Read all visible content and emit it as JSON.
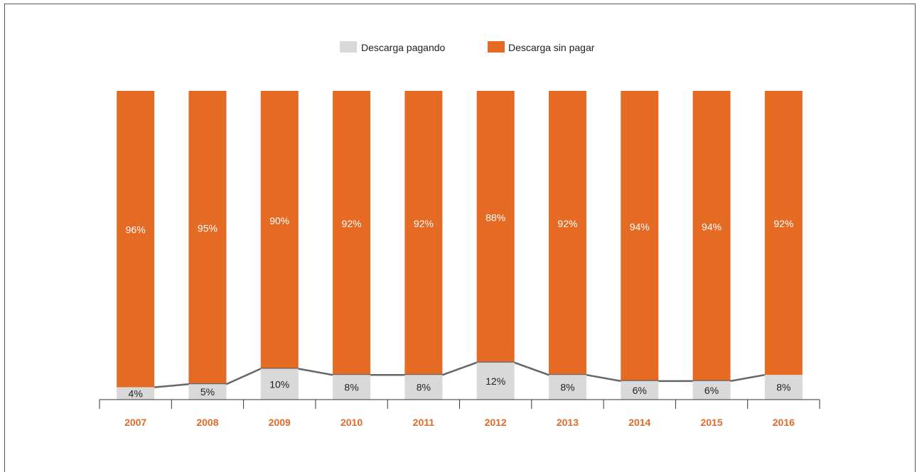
{
  "chart_data": {
    "type": "bar",
    "stacked": true,
    "categories": [
      "2007",
      "2008",
      "2009",
      "2010",
      "2011",
      "2012",
      "2013",
      "2014",
      "2015",
      "2016"
    ],
    "series": [
      {
        "name": "Descarga pagando",
        "color": "#D9D9D9",
        "values": [
          4,
          5,
          10,
          8,
          8,
          12,
          8,
          6,
          6,
          8
        ],
        "labels": [
          "4%",
          "5%",
          "10%",
          "8%",
          "8%",
          "12%",
          "8%",
          "6%",
          "6%",
          "8%"
        ]
      },
      {
        "name": "Descarga sin pagar",
        "color": "#E56B25",
        "values": [
          96,
          95,
          90,
          92,
          92,
          88,
          92,
          94,
          94,
          92
        ],
        "labels": [
          "96%",
          "95%",
          "90%",
          "92%",
          "92%",
          "88%",
          "92%",
          "94%",
          "94%",
          "92%"
        ]
      }
    ],
    "line_series": {
      "over": "Descarga pagando",
      "color": "#666666"
    },
    "ylim": [
      0,
      100
    ],
    "legend_position": "top-center",
    "grid": false,
    "tick_label_color": "#E2692A"
  }
}
